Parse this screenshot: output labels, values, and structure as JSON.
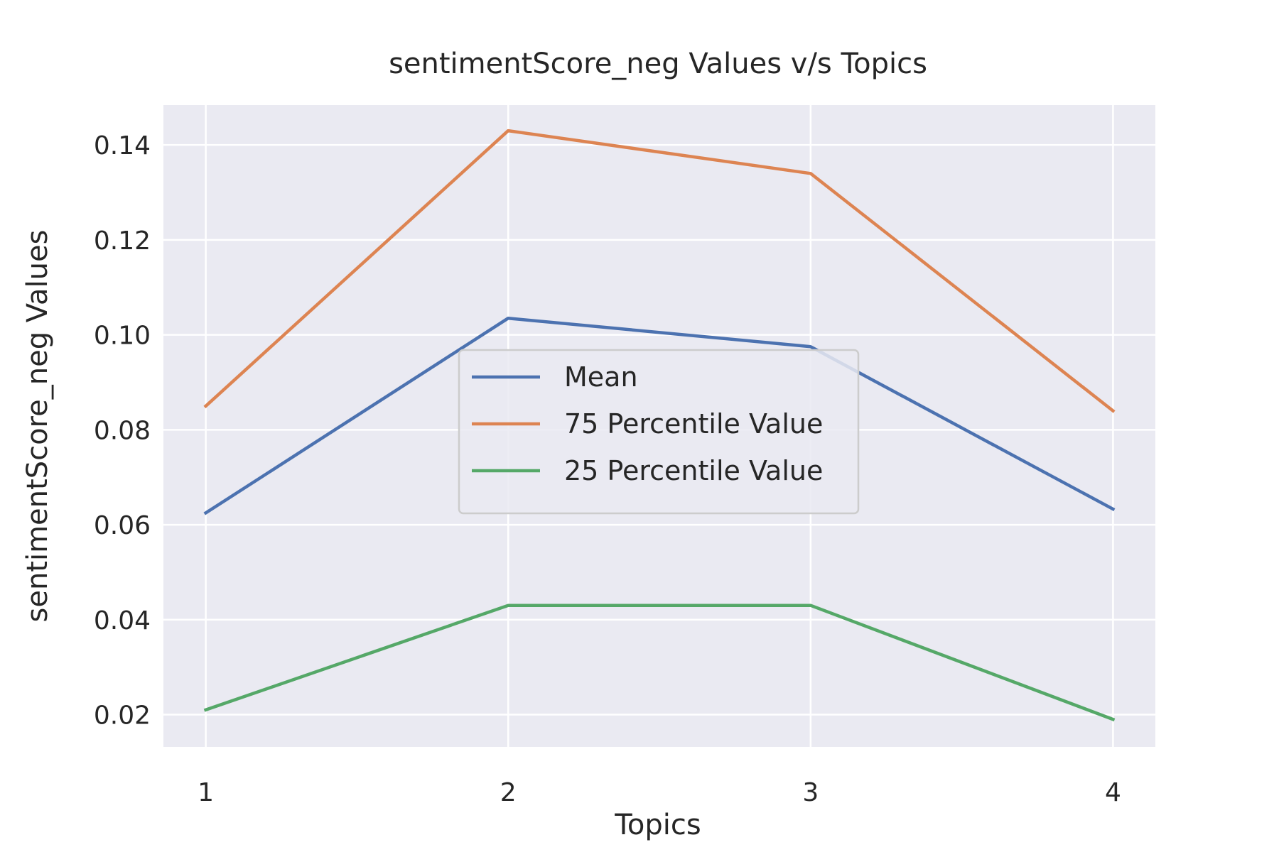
{
  "chart_data": {
    "type": "line",
    "title": "sentimentScore_neg Values v/s Topics",
    "xlabel": "Topics",
    "ylabel": "sentimentScore_neg Values",
    "x": [
      1,
      2,
      3,
      4
    ],
    "x_tick_labels": [
      "1",
      "2",
      "3",
      "4"
    ],
    "xlim": [
      0.86,
      4.14
    ],
    "ylim": [
      0.0132,
      0.1484
    ],
    "y_ticks": [
      0.02,
      0.04,
      0.06,
      0.08,
      0.1,
      0.12,
      0.14
    ],
    "y_tick_labels": [
      "0.02",
      "0.04",
      "0.06",
      "0.08",
      "0.10",
      "0.12",
      "0.14"
    ],
    "grid": true,
    "background_color": "#eaeaf2",
    "grid_color": "#ffffff",
    "legend_position": "center",
    "series": [
      {
        "name": "Mean",
        "color": "#4c72b0",
        "values": [
          0.0625,
          0.1035,
          0.0975,
          0.0633
        ]
      },
      {
        "name": "75 Percentile Value",
        "color": "#dd8452",
        "values": [
          0.085,
          0.143,
          0.134,
          0.084
        ]
      },
      {
        "name": "25 Percentile Value",
        "color": "#55a868",
        "values": [
          0.021,
          0.043,
          0.043,
          0.019
        ]
      }
    ]
  }
}
